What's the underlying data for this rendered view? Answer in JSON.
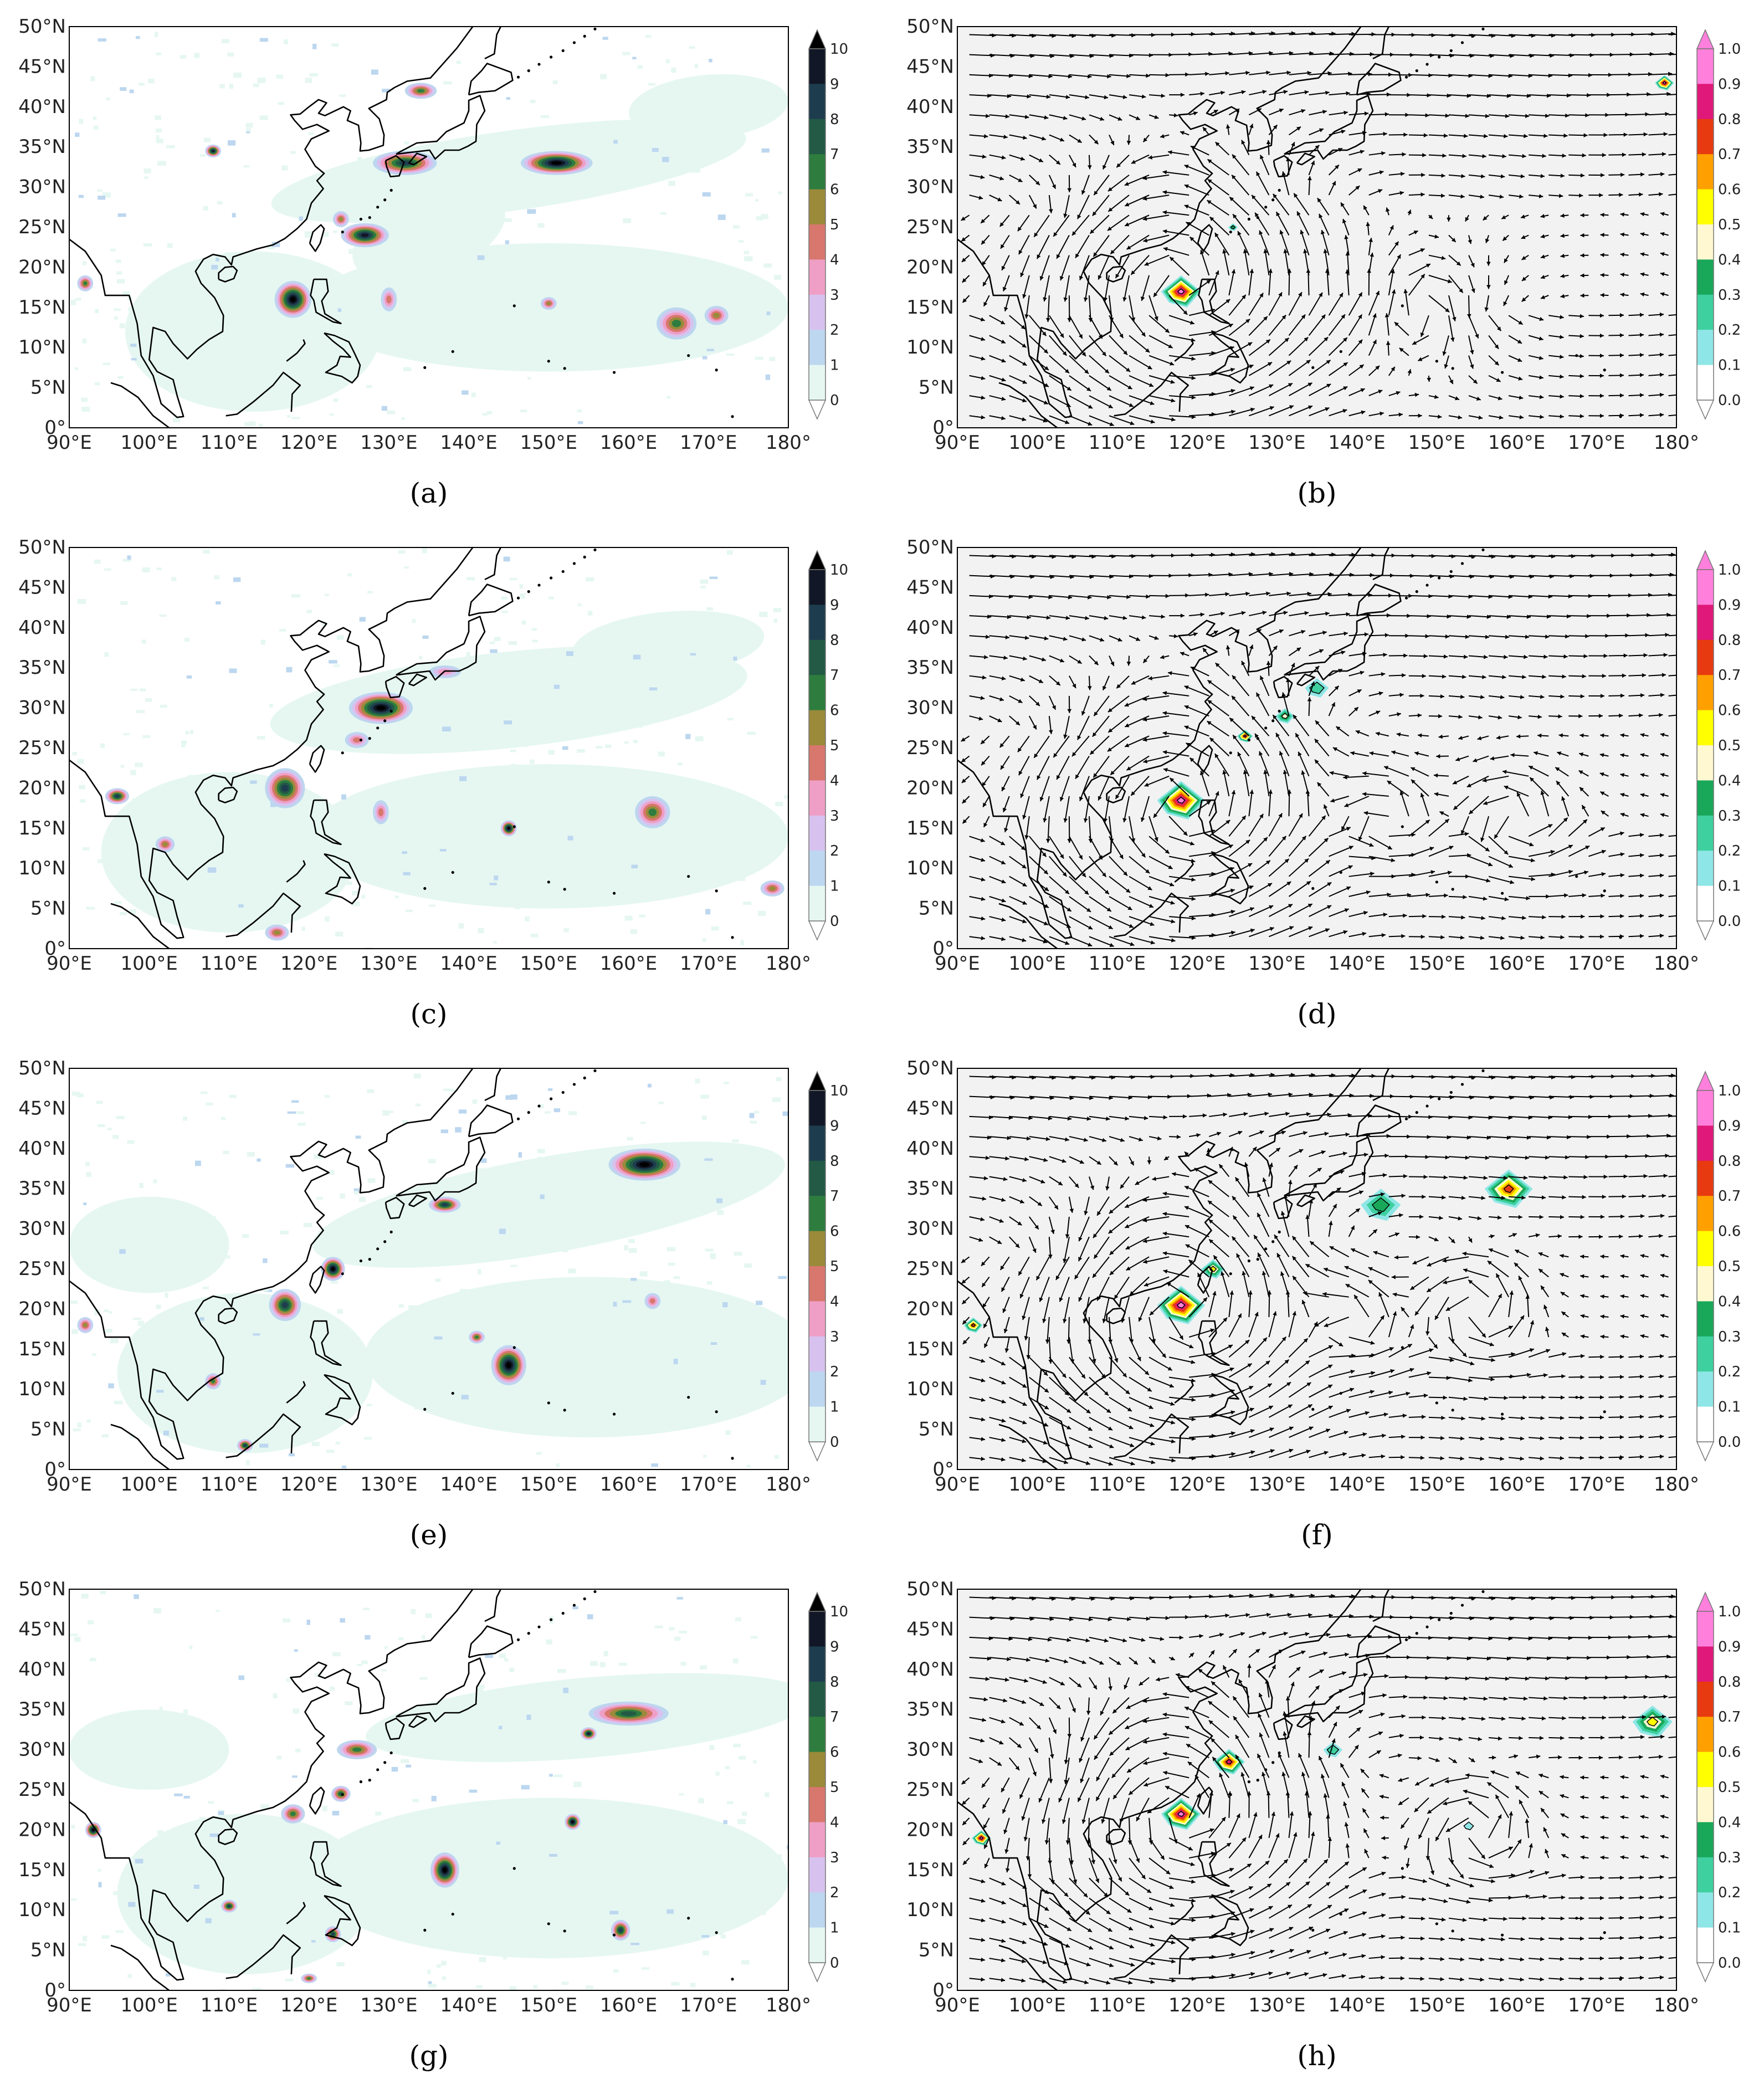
{
  "figure": {
    "lat_labels": [
      "50°N",
      "45°N",
      "40°N",
      "35°N",
      "30°N",
      "25°N",
      "20°N",
      "15°N",
      "10°N",
      "5°N",
      "0°"
    ],
    "lon_labels": [
      "90°E",
      "100°E",
      "110°E",
      "120°E",
      "130°E",
      "140°E",
      "150°E",
      "160°E",
      "170°E",
      "180°"
    ],
    "extent": {
      "lon": [
        90,
        180
      ],
      "lat": [
        0,
        50
      ]
    },
    "precip_colorbar": {
      "ticks": [
        "0",
        "1",
        "2",
        "3",
        "4",
        "5",
        "6",
        "7",
        "8",
        "9",
        "10"
      ],
      "colors": [
        "#e6f7f2",
        "#bcd7ef",
        "#d7c2ef",
        "#ef9fc6",
        "#d8776d",
        "#9a8a3a",
        "#2e7d3f",
        "#225a45",
        "#1d3d4f",
        "#111726",
        "#000000"
      ]
    },
    "prob_colorbar": {
      "ticks": [
        "0.0",
        "0.1",
        "0.2",
        "0.3",
        "0.4",
        "0.5",
        "0.6",
        "0.7",
        "0.8",
        "0.9",
        "1.0"
      ],
      "colors": [
        "#ffffff",
        "#8fe6e6",
        "#3fd0a0",
        "#19a85a",
        "#fff8d0",
        "#ffff00",
        "#ffa000",
        "#e83a10",
        "#e0187a",
        "#ff80dc"
      ]
    },
    "panels": [
      {
        "label": "(a)",
        "kind": "precip"
      },
      {
        "label": "(b)",
        "kind": "prob_wind"
      },
      {
        "label": "(c)",
        "kind": "precip"
      },
      {
        "label": "(d)",
        "kind": "prob_wind"
      },
      {
        "label": "(e)",
        "kind": "precip"
      },
      {
        "label": "(f)",
        "kind": "prob_wind"
      },
      {
        "label": "(g)",
        "kind": "precip"
      },
      {
        "label": "(h)",
        "kind": "prob_wind"
      }
    ]
  }
}
